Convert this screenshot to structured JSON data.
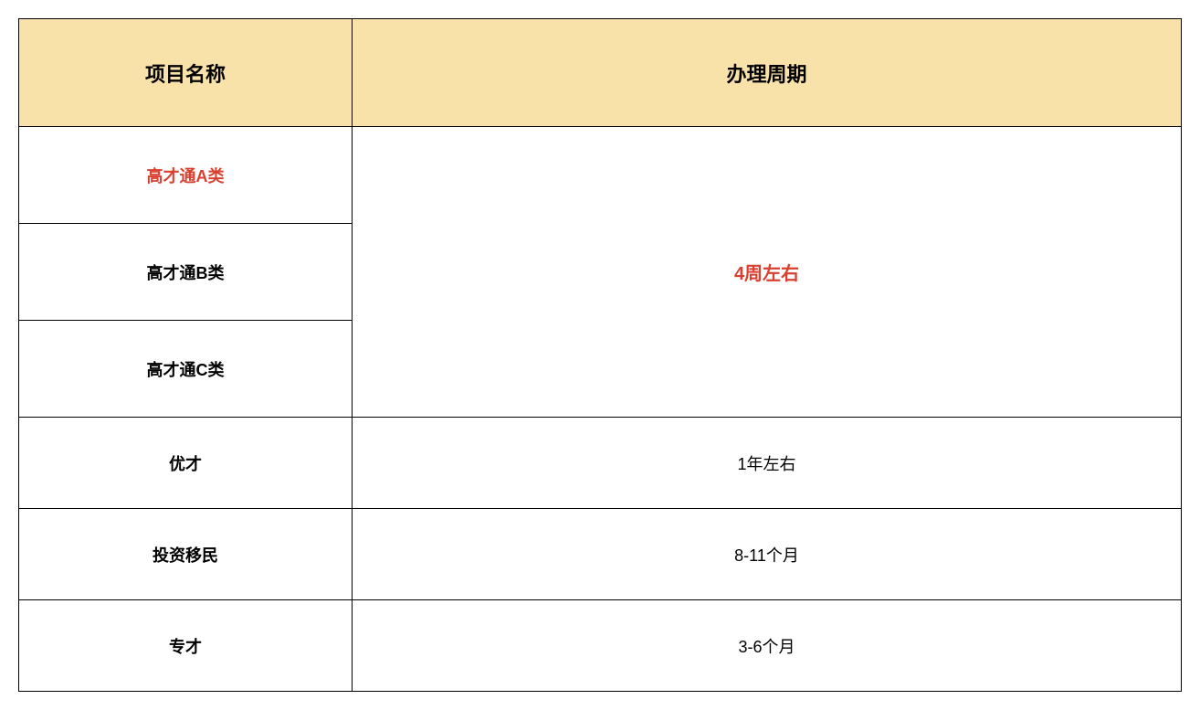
{
  "table": {
    "headers": {
      "name": "项目名称",
      "period": "办理周期"
    },
    "header_bg_color": "#f9e2a9",
    "border_color": "#000000",
    "highlight_color": "#d94030",
    "text_color": "#000000",
    "rows": {
      "r1_name": "高才通A类",
      "r2_name": "高才通B类",
      "r3_name": "高才通C类",
      "merged_period": "4周左右",
      "r4_name": "优才",
      "r4_period": "1年左右",
      "r5_name": "投资移民",
      "r5_period": "8-11个月",
      "r6_name": "专才",
      "r6_period": "3-6个月"
    }
  }
}
